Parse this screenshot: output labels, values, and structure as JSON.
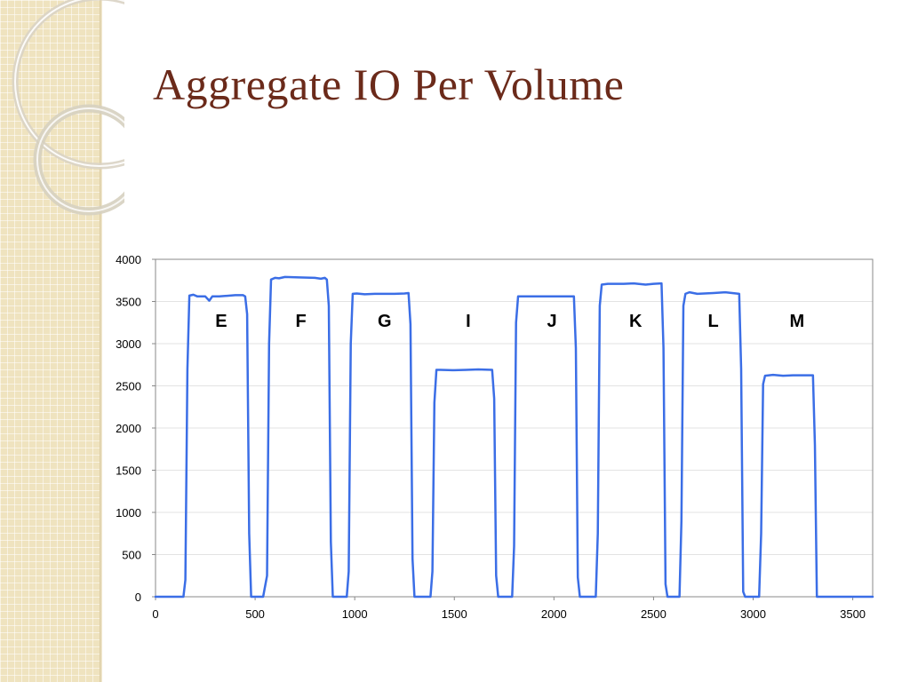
{
  "slide": {
    "title": "Aggregate IO Per Volume"
  },
  "chart_data": {
    "type": "line",
    "title": "",
    "xlabel": "",
    "ylabel": "",
    "xlim": [
      0,
      3600
    ],
    "ylim": [
      0,
      4000
    ],
    "x_ticks": [
      0,
      500,
      1000,
      1500,
      2000,
      2500,
      3000,
      3500
    ],
    "y_ticks": [
      0,
      500,
      1000,
      1500,
      2000,
      2500,
      3000,
      3500,
      4000
    ],
    "grid": "horizontal",
    "legend": "none",
    "series": [
      {
        "color": "#3b6ee6",
        "points": [
          [
            0,
            0
          ],
          [
            140,
            0
          ],
          [
            150,
            200
          ],
          [
            160,
            2700
          ],
          [
            170,
            3570
          ],
          [
            190,
            3580
          ],
          [
            210,
            3560
          ],
          [
            250,
            3560
          ],
          [
            270,
            3510
          ],
          [
            285,
            3560
          ],
          [
            320,
            3560
          ],
          [
            400,
            3575
          ],
          [
            440,
            3575
          ],
          [
            450,
            3560
          ],
          [
            460,
            3350
          ],
          [
            470,
            750
          ],
          [
            480,
            0
          ],
          [
            540,
            0
          ],
          [
            560,
            250
          ],
          [
            570,
            3000
          ],
          [
            580,
            3760
          ],
          [
            600,
            3780
          ],
          [
            620,
            3775
          ],
          [
            650,
            3790
          ],
          [
            720,
            3785
          ],
          [
            800,
            3780
          ],
          [
            830,
            3770
          ],
          [
            850,
            3780
          ],
          [
            860,
            3760
          ],
          [
            870,
            3450
          ],
          [
            880,
            650
          ],
          [
            890,
            0
          ],
          [
            960,
            0
          ],
          [
            970,
            300
          ],
          [
            980,
            3000
          ],
          [
            990,
            3590
          ],
          [
            1010,
            3595
          ],
          [
            1050,
            3585
          ],
          [
            1100,
            3590
          ],
          [
            1150,
            3590
          ],
          [
            1200,
            3590
          ],
          [
            1250,
            3595
          ],
          [
            1270,
            3600
          ],
          [
            1280,
            3230
          ],
          [
            1290,
            450
          ],
          [
            1300,
            0
          ],
          [
            1380,
            0
          ],
          [
            1390,
            300
          ],
          [
            1400,
            2300
          ],
          [
            1410,
            2690
          ],
          [
            1430,
            2690
          ],
          [
            1500,
            2685
          ],
          [
            1560,
            2690
          ],
          [
            1620,
            2695
          ],
          [
            1690,
            2690
          ],
          [
            1700,
            2350
          ],
          [
            1710,
            250
          ],
          [
            1720,
            0
          ],
          [
            1790,
            0
          ],
          [
            1800,
            600
          ],
          [
            1810,
            3250
          ],
          [
            1820,
            3560
          ],
          [
            1850,
            3560
          ],
          [
            1900,
            3560
          ],
          [
            2000,
            3560
          ],
          [
            2080,
            3560
          ],
          [
            2100,
            3560
          ],
          [
            2110,
            2950
          ],
          [
            2120,
            230
          ],
          [
            2130,
            0
          ],
          [
            2210,
            0
          ],
          [
            2220,
            750
          ],
          [
            2230,
            3450
          ],
          [
            2240,
            3700
          ],
          [
            2270,
            3710
          ],
          [
            2350,
            3710
          ],
          [
            2400,
            3715
          ],
          [
            2460,
            3700
          ],
          [
            2500,
            3710
          ],
          [
            2540,
            3715
          ],
          [
            2550,
            2950
          ],
          [
            2560,
            150
          ],
          [
            2570,
            0
          ],
          [
            2630,
            0
          ],
          [
            2640,
            900
          ],
          [
            2650,
            3450
          ],
          [
            2660,
            3590
          ],
          [
            2680,
            3610
          ],
          [
            2720,
            3590
          ],
          [
            2800,
            3600
          ],
          [
            2860,
            3610
          ],
          [
            2930,
            3590
          ],
          [
            2940,
            2700
          ],
          [
            2950,
            60
          ],
          [
            2960,
            0
          ],
          [
            3030,
            0
          ],
          [
            3040,
            750
          ],
          [
            3050,
            2520
          ],
          [
            3060,
            2620
          ],
          [
            3100,
            2630
          ],
          [
            3150,
            2620
          ],
          [
            3200,
            2625
          ],
          [
            3290,
            2625
          ],
          [
            3300,
            2625
          ],
          [
            3310,
            1800
          ],
          [
            3320,
            0
          ],
          [
            3600,
            0
          ]
        ]
      }
    ],
    "annotations": [
      {
        "text": "E",
        "x": 330,
        "y": 3200
      },
      {
        "text": "F",
        "x": 730,
        "y": 3200
      },
      {
        "text": "G",
        "x": 1150,
        "y": 3200
      },
      {
        "text": "I",
        "x": 1570,
        "y": 3200
      },
      {
        "text": "J",
        "x": 1990,
        "y": 3200
      },
      {
        "text": "K",
        "x": 2410,
        "y": 3200
      },
      {
        "text": "L",
        "x": 2800,
        "y": 3200
      },
      {
        "text": "M",
        "x": 3220,
        "y": 3200
      }
    ]
  }
}
